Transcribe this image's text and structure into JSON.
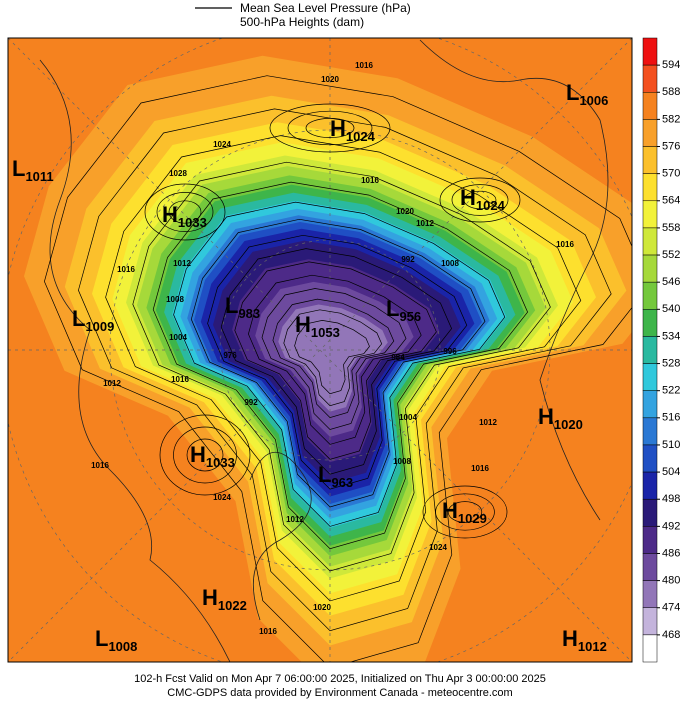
{
  "legend": {
    "line_label": "Mean Sea Level Pressure (hPa)",
    "fill_label": "500-hPa Heights (dam)"
  },
  "colorbar": {
    "ticks": [
      594,
      588,
      582,
      576,
      570,
      564,
      558,
      552,
      546,
      540,
      534,
      528,
      522,
      516,
      510,
      504,
      498,
      492,
      486,
      480,
      474,
      468
    ],
    "colors": [
      "#ee1010",
      "#f3501f",
      "#f5821f",
      "#f8a02a",
      "#fbc02c",
      "#fde02e",
      "#f2f23a",
      "#cfe83a",
      "#a6d93a",
      "#74c83c",
      "#3eb54a",
      "#2ab9a0",
      "#30c8dc",
      "#33a3e0",
      "#2a78d4",
      "#1f4fc4",
      "#1a24a8",
      "#2a1a78",
      "#4d2a88",
      "#6d4a9e",
      "#9276b8",
      "#c4b4dc",
      "#ffffff"
    ]
  },
  "centers": [
    {
      "kind": "L",
      "value": 1006
    },
    {
      "kind": "H",
      "value": 1024
    },
    {
      "kind": "L",
      "value": 1011
    },
    {
      "kind": "H",
      "value": 1024
    },
    {
      "kind": "H",
      "value": 1033
    },
    {
      "kind": "L",
      "value": 1009
    },
    {
      "kind": "L",
      "value": 983
    },
    {
      "kind": "H",
      "value": 1053
    },
    {
      "kind": "L",
      "value": 956
    },
    {
      "kind": "H",
      "value": 1020
    },
    {
      "kind": "H",
      "value": 1033
    },
    {
      "kind": "L",
      "value": 963
    },
    {
      "kind": "H",
      "value": 1029
    },
    {
      "kind": "H",
      "value": 1022
    },
    {
      "kind": "L",
      "value": 1008
    },
    {
      "kind": "H",
      "value": 1012
    }
  ],
  "contour_labels": [
    1020,
    1016,
    1024,
    1028,
    1016,
    1020,
    1012,
    1008,
    992,
    1016,
    1012,
    1008,
    1004,
    976,
    1016,
    992,
    1012,
    1004,
    1012,
    1016,
    996,
    984,
    1016,
    1024,
    1008,
    1012,
    1024,
    1020,
    1016,
    1016
  ],
  "footer": [
    "102-h Fcst Valid on Mon Apr  7 06:00:00 2025, Initialized on Thu Apr  3 00:00:00 2025",
    "CMC-GDPS data provided by Environment Canada - meteocentre.com"
  ]
}
